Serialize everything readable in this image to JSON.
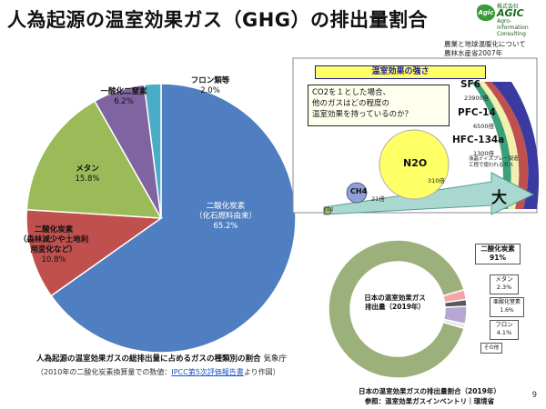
{
  "header": {
    "title": "人為起源の温室効果ガス（GHG）の排出量割合",
    "logo_company_prefix": "株式会社",
    "logo_company": "AGIC",
    "logo_mark": "Agic",
    "logo_tagline": "Agro-information Consulting"
  },
  "source_top": {
    "line1": "農業と地球温暖化について",
    "line2": "農林水産省2007年"
  },
  "chart_data": [
    {
      "type": "pie",
      "title": "人為起源の温室効果ガスの総排出量に占めるガスの種類別の割合",
      "source": "気象庁",
      "note_prefix": "（2010年の二酸化炭素換算量での数値：",
      "note_link": "IPCC第5次評価報告書",
      "note_suffix": "より作図）",
      "slices": [
        {
          "label_line1": "二酸化炭素",
          "label_line2": "（化石燃料由来）",
          "value": 65.2,
          "value_text": "65.2%",
          "color": "#4f7fc0"
        },
        {
          "label_line1": "二酸化炭素",
          "label_line2": "（森林減少や土地利用変化など）",
          "value": 10.8,
          "value_text": "10.8%",
          "color": "#c0504d"
        },
        {
          "label_line1": "メタン",
          "label_line2": "",
          "value": 15.8,
          "value_text": "15.8%",
          "color": "#9bbb59"
        },
        {
          "label_line1": "一酸化二窒素",
          "label_line2": "",
          "value": 6.2,
          "value_text": "6.2%",
          "color": "#8064a2"
        },
        {
          "label_line1": "フロン類等",
          "label_line2": "",
          "value": 2.0,
          "value_text": "2.0%",
          "color": "#4bacc6"
        }
      ],
      "labels": {
        "co2_fossil_1": "二酸化炭素",
        "co2_fossil_2": "（化石燃料由来）",
        "co2_fossil_v": "65.2%",
        "co2_land_1": "二酸化炭素",
        "co2_land_2": "（森林減少や土地利",
        "co2_land_3": "用変化など）",
        "co2_land_v": "10.8%",
        "methane_1": "メタン",
        "methane_v": "15.8%",
        "n2o_1": "一酸化二窒素",
        "n2o_v": "6.2%",
        "freon_1": "フロン類等",
        "freon_v": "2.0%"
      }
    },
    {
      "type": "pie",
      "title": "日本の温室効果ガスの排出量割合（2019年）",
      "source": "参照：温室効果ガスインベントリ｜環境省",
      "center_line1": "日本の温室効果ガス",
      "center_line2": "排出量（2019年）",
      "slices": [
        {
          "label": "二酸化炭素",
          "value": 91,
          "value_text": "91%",
          "color": "#9bb07a"
        },
        {
          "label": "メタン",
          "value": 2.3,
          "value_text": "2.3%",
          "color": "#f4a6a6"
        },
        {
          "label": "亜酸化窒素",
          "value": 1.6,
          "value_text": "1.6%",
          "color": "#5a5a5a"
        },
        {
          "label": "フロン",
          "value": 4.1,
          "value_text": "4.1%",
          "color": "#b7a6d6"
        },
        {
          "label": "その他",
          "value": 1.0,
          "value_text": "",
          "color": "#e8e8e8"
        }
      ],
      "other_label": "その他"
    }
  ],
  "warming_panel": {
    "title": "温室効果の強さ",
    "question_line1": "CO2を１とした場合、",
    "question_line2": "他のガスはどの程度の",
    "question_line3": "温室効果を持っているのか？",
    "co2_label": "CO2",
    "ch4_label": "CH4",
    "ch4_value": "21倍",
    "n2o_label": "N2O",
    "n2o_value": "310倍",
    "big_label": "大",
    "sf6_label": "SF6",
    "sf6_value": "23900倍",
    "pfc_label": "PFC-14",
    "pfc_value": "6500倍",
    "hfc_label": "HFC-134a",
    "hfc_value": "1300倍",
    "hfc_note_1": "液晶ディスプレー製造",
    "hfc_note_2": "工程で使われるガス"
  },
  "page_number": "9"
}
